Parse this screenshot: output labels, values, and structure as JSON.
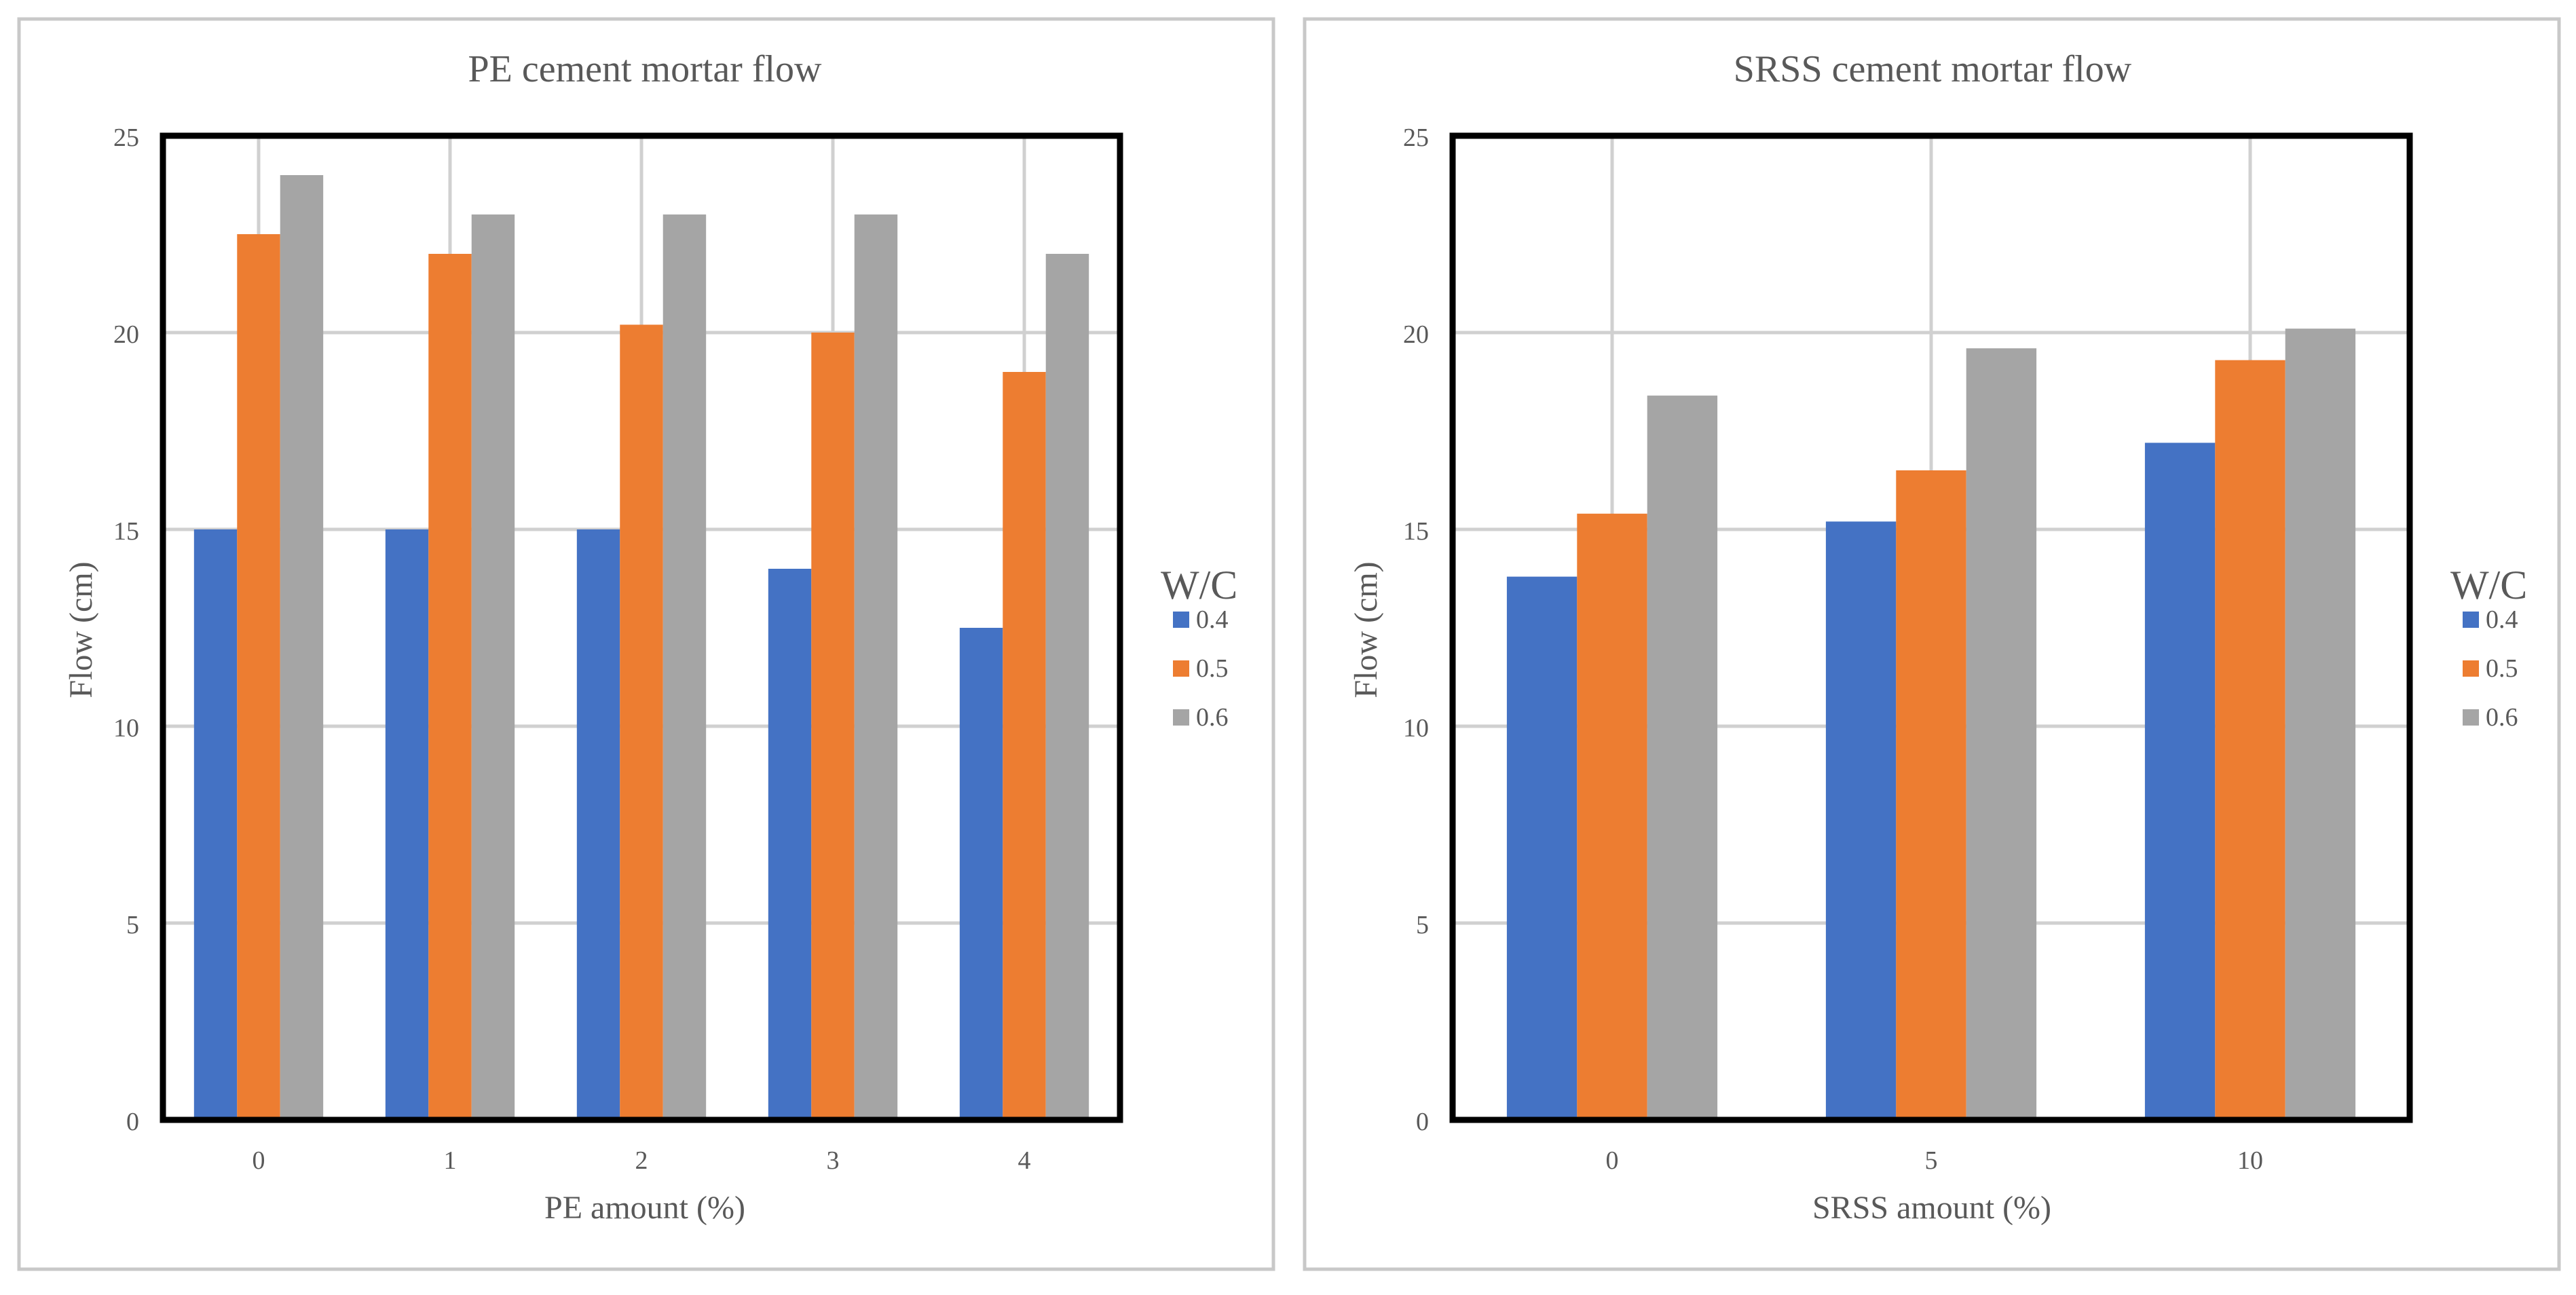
{
  "chart_data": [
    {
      "type": "bar",
      "title": "PE cement mortar flow",
      "xlabel": "PE amount (%)",
      "ylabel": "Flow (cm)",
      "categories": [
        "0",
        "1",
        "2",
        "3",
        "4"
      ],
      "ylim": [
        0,
        25
      ],
      "yticks": [
        0,
        5,
        10,
        15,
        20,
        25
      ],
      "ytick_labels": [
        "0",
        "5",
        "10",
        "15",
        "20",
        "25"
      ],
      "grid": true,
      "legend_title": "W/C",
      "legend_position": "right",
      "series": [
        {
          "name": "0.4",
          "color": "#4472C4",
          "values": [
            15,
            15,
            15,
            14,
            12.5
          ]
        },
        {
          "name": "0.5",
          "color": "#ED7D31",
          "values": [
            22.5,
            22,
            20.2,
            20,
            19
          ]
        },
        {
          "name": "0.6",
          "color": "#A5A5A5",
          "values": [
            24,
            23,
            23,
            23,
            22
          ]
        }
      ]
    },
    {
      "type": "bar",
      "title": "SRSS cement mortar flow",
      "xlabel": "SRSS amount (%)",
      "ylabel": "Flow (cm)",
      "categories": [
        "0",
        "5",
        "10"
      ],
      "ylim": [
        0,
        25
      ],
      "yticks": [
        0,
        5,
        10,
        15,
        20,
        25
      ],
      "ytick_labels": [
        "0",
        "5",
        "10",
        "15",
        "20",
        "25"
      ],
      "grid": true,
      "legend_title": "W/C",
      "legend_position": "right",
      "series": [
        {
          "name": "0.4",
          "color": "#4472C4",
          "values": [
            13.8,
            15.2,
            17.2
          ]
        },
        {
          "name": "0.5",
          "color": "#ED7D31",
          "values": [
            15.4,
            16.5,
            19.3
          ]
        },
        {
          "name": "0.6",
          "color": "#A5A5A5",
          "values": [
            18.4,
            19.6,
            20.1
          ]
        }
      ]
    }
  ]
}
